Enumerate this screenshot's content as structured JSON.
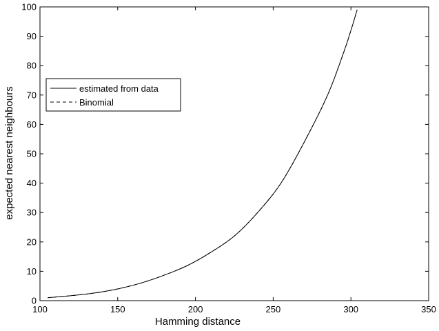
{
  "chart_data": {
    "type": "line",
    "title": "",
    "xlabel": "Hamming distance",
    "ylabel": "expected nearest neighbours",
    "xlim": [
      100,
      350
    ],
    "ylim": [
      0,
      100
    ],
    "xticks": [
      100,
      150,
      200,
      250,
      300,
      350
    ],
    "yticks": [
      0,
      10,
      20,
      30,
      40,
      50,
      60,
      70,
      80,
      90,
      100
    ],
    "grid": false,
    "legend_position": "upper-left",
    "series": [
      {
        "name": "estimated from data",
        "style": "solid",
        "color": "#000000",
        "x": [
          105,
          120,
          135,
          150,
          165,
          180,
          195,
          210,
          225,
          240,
          255,
          270,
          285,
          295,
          300,
          304
        ],
        "y": [
          1,
          1.7,
          2.6,
          4,
          6,
          8.7,
          12,
          16.5,
          22,
          30,
          40,
          54,
          70,
          84,
          92,
          99
        ]
      },
      {
        "name": "Binomial",
        "style": "dashed",
        "color": "#000000",
        "x": [
          105,
          120,
          135,
          150,
          165,
          180,
          195,
          210,
          225,
          240,
          255,
          270,
          285,
          295,
          300,
          304
        ],
        "y": [
          1,
          1.7,
          2.6,
          4,
          6,
          8.7,
          12,
          16.5,
          22,
          30,
          40,
          54,
          70,
          84,
          92,
          99
        ]
      }
    ]
  }
}
